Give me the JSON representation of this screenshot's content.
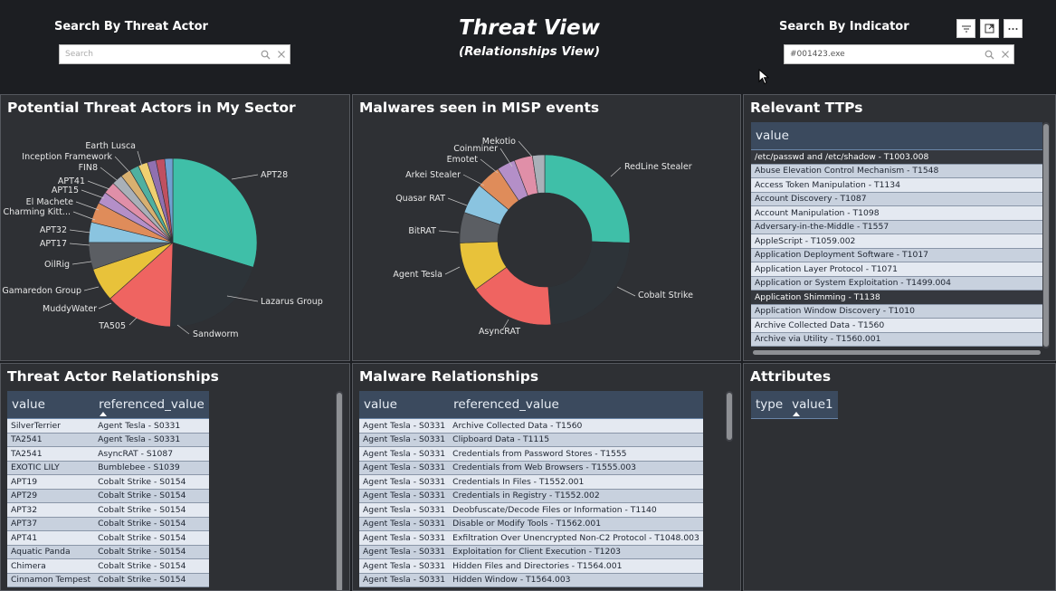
{
  "header": {
    "threat_actor_label": "Search By Threat Actor",
    "threat_actor_placeholder": "Search",
    "title": "Threat View",
    "subtitle": "(Relationships View)",
    "indicator_label": "Search By Indicator",
    "indicator_value": "#001423.exe"
  },
  "panels": {
    "threat_actors": {
      "title": "Potential Threat Actors in My Sector",
      "chart_data": {
        "type": "pie",
        "labels": [
          "APT28",
          "Lazarus Group",
          "Sandworm",
          "TA505",
          "MuddyWater",
          "Gamaredon Group",
          "OilRig",
          "APT17",
          "APT32",
          "Charming Kitt...",
          "El Machete",
          "APT15",
          "APT41",
          "FIN8",
          "Inception Framework",
          "Earth Lusca"
        ],
        "values": [
          23,
          16,
          10,
          5,
          4,
          3,
          3,
          1.8,
          1.8,
          1.6,
          1.5,
          1.4,
          1.4,
          1.3,
          1.3,
          1.2
        ],
        "colors": [
          "#3fbfa8",
          "#2d3338",
          "#ef6461",
          "#e8c23a",
          "#5b5e63",
          "#8ac4e0",
          "#df8c5a",
          "#b48fc8",
          "#e08fa8",
          "#a9b0b8",
          "#d8b070",
          "#4fb0a0",
          "#f0d070",
          "#9070b0",
          "#c05060",
          "#70a0d0"
        ]
      }
    },
    "malwares": {
      "title": "Malwares seen in MISP events",
      "chart_data": {
        "type": "pie",
        "donut": true,
        "labels": [
          "RedLine Stealer",
          "Cobalt Strike",
          "AsyncRAT",
          "Agent Tesla",
          "BitRAT",
          "Quasar RAT",
          "Arkei Stealer",
          "Emotet",
          "Coinminer",
          "Mekotio"
        ],
        "values": [
          22,
          20,
          14,
          8,
          5,
          5,
          4,
          3,
          3,
          2
        ],
        "colors": [
          "#3fbfa8",
          "#2d3338",
          "#ef6461",
          "#e8c23a",
          "#5b5e63",
          "#8ac4e0",
          "#df8c5a",
          "#b48fc8",
          "#e08fa8",
          "#a9b0b8"
        ]
      }
    },
    "ttps": {
      "title": "Relevant TTPs",
      "header": "value",
      "rows": [
        "/etc/passwd and /etc/shadow - T1003.008",
        "Abuse Elevation Control Mechanism - T1548",
        "Access Token Manipulation - T1134",
        "Account Discovery - T1087",
        "Account Manipulation - T1098",
        "Adversary-in-the-Middle - T1557",
        "AppleScript - T1059.002",
        "Application Deployment Software - T1017",
        "Application Layer Protocol - T1071",
        "Application or System Exploitation - T1499.004",
        "Application Shimming - T1138",
        "Application Window Discovery - T1010",
        "Archive Collected Data - T1560",
        "Archive via Utility - T1560.001"
      ]
    },
    "ta_relationships": {
      "title": "Threat Actor Relationships",
      "col1": "value",
      "col2": "referenced_value",
      "rows": [
        [
          "SilverTerrier",
          "Agent Tesla - S0331"
        ],
        [
          "TA2541",
          "Agent Tesla - S0331"
        ],
        [
          "TA2541",
          "AsyncRAT - S1087"
        ],
        [
          "EXOTIC LILY",
          "Bumblebee - S1039"
        ],
        [
          "APT19",
          "Cobalt Strike - S0154"
        ],
        [
          "APT29",
          "Cobalt Strike - S0154"
        ],
        [
          "APT32",
          "Cobalt Strike - S0154"
        ],
        [
          "APT37",
          "Cobalt Strike - S0154"
        ],
        [
          "APT41",
          "Cobalt Strike - S0154"
        ],
        [
          "Aquatic Panda",
          "Cobalt Strike - S0154"
        ],
        [
          "Chimera",
          "Cobalt Strike - S0154"
        ],
        [
          "Cinnamon Tempest",
          "Cobalt Strike - S0154"
        ]
      ]
    },
    "malware_relationships": {
      "title": "Malware Relationships",
      "col1": "value",
      "col2": "referenced_value",
      "rows": [
        [
          "Agent Tesla - S0331",
          "Archive Collected Data - T1560"
        ],
        [
          "Agent Tesla - S0331",
          "Clipboard Data - T1115"
        ],
        [
          "Agent Tesla - S0331",
          "Credentials from Password Stores - T1555"
        ],
        [
          "Agent Tesla - S0331",
          "Credentials from Web Browsers - T1555.003"
        ],
        [
          "Agent Tesla - S0331",
          "Credentials In Files - T1552.001"
        ],
        [
          "Agent Tesla - S0331",
          "Credentials in Registry - T1552.002"
        ],
        [
          "Agent Tesla - S0331",
          "Deobfuscate/Decode Files or Information - T1140"
        ],
        [
          "Agent Tesla - S0331",
          "Disable or Modify Tools - T1562.001"
        ],
        [
          "Agent Tesla - S0331",
          "Exfiltration Over Unencrypted Non-C2 Protocol - T1048.003"
        ],
        [
          "Agent Tesla - S0331",
          "Exploitation for Client Execution - T1203"
        ],
        [
          "Agent Tesla - S0331",
          "Hidden Files and Directories - T1564.001"
        ],
        [
          "Agent Tesla - S0331",
          "Hidden Window - T1564.003"
        ]
      ]
    },
    "attributes": {
      "title": "Attributes",
      "col1": "type",
      "col2": "value1"
    }
  },
  "icons": {
    "search": "search-icon",
    "clear": "close-icon",
    "filter": "filter-icon",
    "focus": "focus-mode-icon",
    "more": "more-options-icon"
  }
}
